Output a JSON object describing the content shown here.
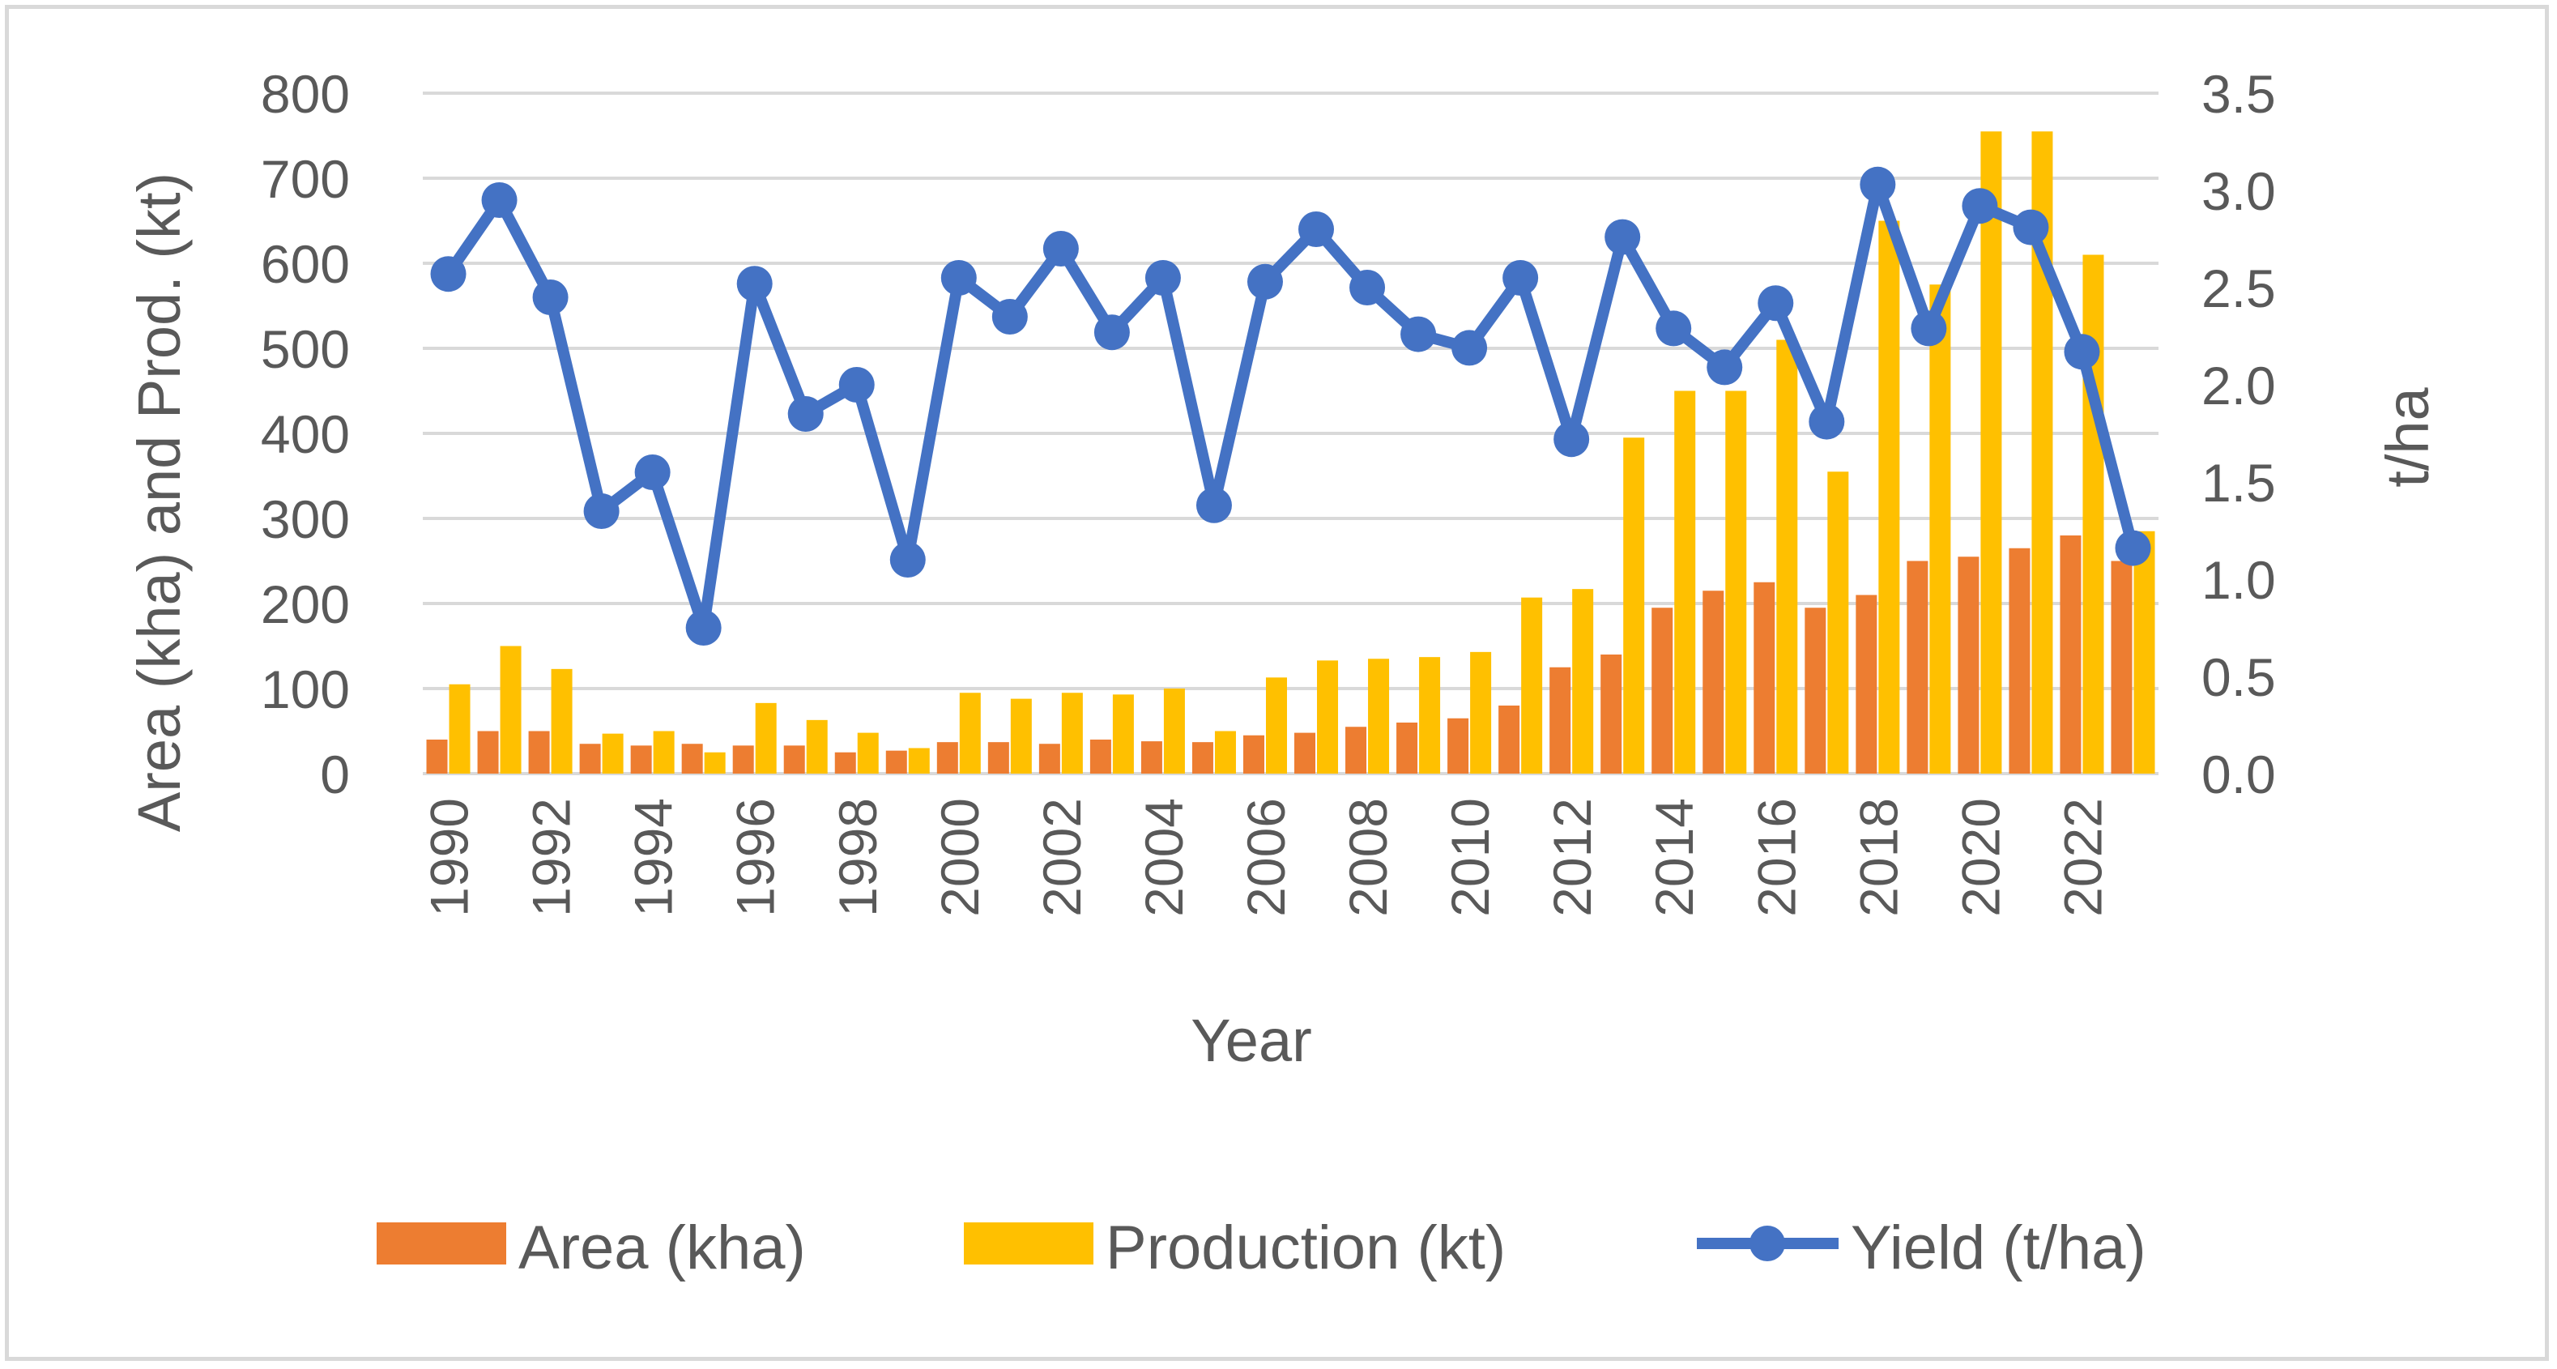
{
  "chart_data": {
    "type": "bar",
    "title": "",
    "categories": [
      "1990",
      "1991",
      "1992",
      "1993",
      "1994",
      "1995",
      "1996",
      "1997",
      "1998",
      "1999",
      "2000",
      "2001",
      "2002",
      "2003",
      "2004",
      "2005",
      "2006",
      "2007",
      "2008",
      "2009",
      "2010",
      "2011",
      "2012",
      "2013",
      "2014",
      "2015",
      "2016",
      "2017",
      "2018",
      "2019",
      "2020",
      "2021",
      "2022",
      "2023"
    ],
    "x_tick_labels": [
      "1990",
      "1992",
      "1994",
      "1996",
      "1998",
      "2000",
      "2002",
      "2004",
      "2006",
      "2008",
      "2010",
      "2012",
      "2014",
      "2016",
      "2018",
      "2020",
      "2022"
    ],
    "xlabel": "Year",
    "ylabel": "Area (kha) and Prod. (kt)",
    "y2label": "t/ha",
    "ylim": [
      0,
      800
    ],
    "y_ticks": [
      "0",
      "100",
      "200",
      "300",
      "400",
      "500",
      "600",
      "700",
      "800"
    ],
    "y2lim": [
      0,
      3.5
    ],
    "y2_ticks": [
      "0.0",
      "0.5",
      "1.0",
      "1.5",
      "2.0",
      "2.5",
      "3.0",
      "3.5"
    ],
    "grid": true,
    "legend_position": "bottom",
    "series": [
      {
        "name": "Area (kha)",
        "type": "bar",
        "axis": "left",
        "color": "#ED7D31",
        "values": [
          40,
          50,
          50,
          35,
          33,
          35,
          33,
          33,
          25,
          27,
          37,
          37,
          35,
          40,
          38,
          37,
          45,
          48,
          55,
          60,
          65,
          80,
          125,
          140,
          195,
          215,
          225,
          195,
          210,
          250,
          255,
          265,
          280,
          250
        ]
      },
      {
        "name": "Production (kt)",
        "type": "bar",
        "axis": "left",
        "color": "#FFC000",
        "values": [
          105,
          150,
          123,
          47,
          50,
          25,
          83,
          63,
          48,
          30,
          95,
          88,
          95,
          93,
          100,
          50,
          113,
          133,
          135,
          137,
          143,
          207,
          217,
          395,
          450,
          450,
          510,
          355,
          650,
          575,
          755,
          755,
          610,
          285
        ]
      },
      {
        "name": "Yield (t/ha)",
        "type": "line",
        "axis": "right",
        "color": "#4472C4",
        "values": [
          2.57,
          2.95,
          2.45,
          1.35,
          1.55,
          0.75,
          2.52,
          1.85,
          2.0,
          1.1,
          2.55,
          2.35,
          2.7,
          2.27,
          2.55,
          1.38,
          2.53,
          2.8,
          2.5,
          2.26,
          2.19,
          2.55,
          1.72,
          2.76,
          2.29,
          2.09,
          2.42,
          1.81,
          3.03,
          2.29,
          2.92,
          2.81,
          2.17,
          1.16
        ]
      }
    ]
  }
}
